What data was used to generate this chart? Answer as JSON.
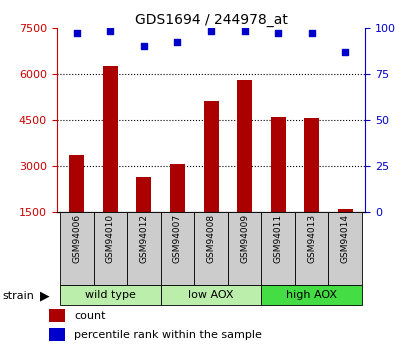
{
  "title": "GDS1694 / 244978_at",
  "samples": [
    "GSM94006",
    "GSM94010",
    "GSM94012",
    "GSM94007",
    "GSM94008",
    "GSM94009",
    "GSM94011",
    "GSM94013",
    "GSM94014"
  ],
  "counts": [
    3350,
    6250,
    2650,
    3050,
    5100,
    5800,
    4600,
    4550,
    1600
  ],
  "percentile_ranks": [
    97,
    98,
    90,
    92,
    98,
    98,
    97,
    97,
    87
  ],
  "group_labels": [
    "wild type",
    "low AOX",
    "high AOX"
  ],
  "group_colors": [
    "#bbeeaa",
    "#bbeeaa",
    "#44dd44"
  ],
  "ylim_left": [
    1500,
    7500
  ],
  "ylim_right": [
    0,
    100
  ],
  "yticks_left": [
    1500,
    3000,
    4500,
    6000,
    7500
  ],
  "yticks_right": [
    0,
    25,
    50,
    75,
    100
  ],
  "bar_color": "#aa0000",
  "dot_color": "#0000cc",
  "tick_label_box_color": "#cccccc",
  "left_axis_color": "#cc0000",
  "right_axis_color": "#0000cc"
}
